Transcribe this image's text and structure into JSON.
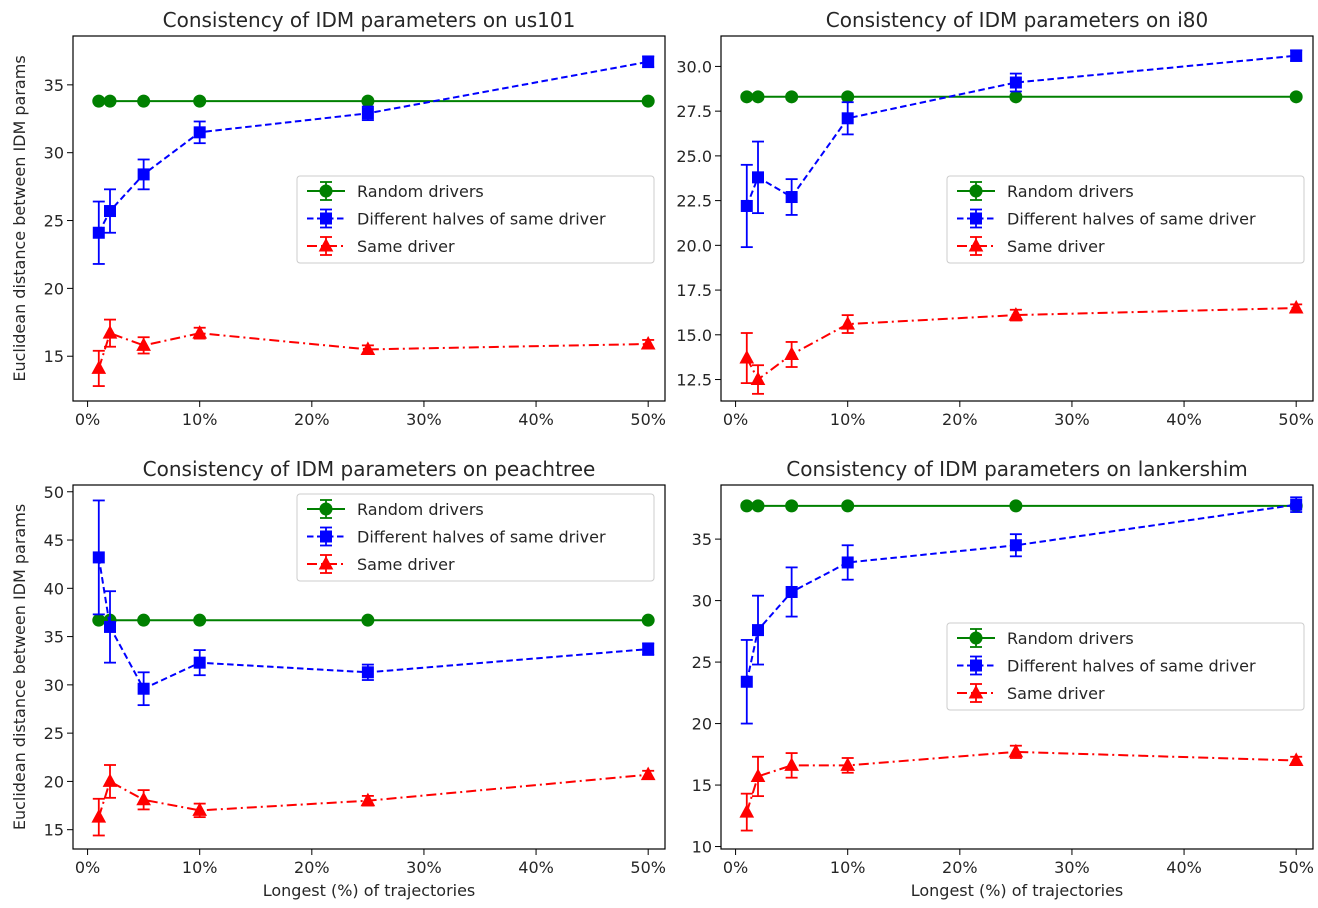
{
  "figure": {
    "ylabel_left": "Euclidean distance between IDM params",
    "xlabel_bottom": "Longest (%) of trajectories"
  },
  "colors": {
    "random": "#008000",
    "halves": "#0000ff",
    "same": "#ff0000"
  },
  "chart_data": [
    {
      "type": "line",
      "title": "Consistency of IDM parameters on us101",
      "xlabel": "",
      "ylabel": "Euclidean distance between IDM params",
      "x_ticks": [
        0,
        10,
        20,
        30,
        40,
        50
      ],
      "x_tick_labels": [
        "0%",
        "10%",
        "20%",
        "30%",
        "40%",
        "50%"
      ],
      "xlim": [
        -1.3,
        51.5
      ],
      "y_ticks": [
        15,
        20,
        25,
        30,
        35
      ],
      "y_tick_labels": [
        "15",
        "20",
        "25",
        "30",
        "35"
      ],
      "ylim": [
        11.7,
        38.6
      ],
      "legend_position": "center-right",
      "x": [
        1,
        2,
        5,
        10,
        25,
        50
      ],
      "series": [
        {
          "name": "Random drivers",
          "style": "solid",
          "marker": "circle",
          "values": [
            33.8,
            33.8,
            33.8,
            33.8,
            33.8,
            33.8
          ],
          "errors": [
            0,
            0,
            0,
            0,
            0,
            0
          ]
        },
        {
          "name": "Different halves of same driver",
          "style": "dashed",
          "marker": "square",
          "values": [
            24.1,
            25.7,
            28.4,
            31.5,
            32.9,
            36.7
          ],
          "errors": [
            2.3,
            1.6,
            1.1,
            0.8,
            0.5,
            0.4
          ]
        },
        {
          "name": "Same driver",
          "style": "dashdot",
          "marker": "triangle",
          "values": [
            14.1,
            16.7,
            15.8,
            16.7,
            15.5,
            15.9
          ],
          "errors": [
            1.3,
            1.0,
            0.6,
            0.4,
            0.3,
            0.3
          ]
        }
      ]
    },
    {
      "type": "line",
      "title": "Consistency of IDM parameters on i80",
      "xlabel": "",
      "ylabel": "",
      "x_ticks": [
        0,
        10,
        20,
        30,
        40,
        50
      ],
      "x_tick_labels": [
        "0%",
        "10%",
        "20%",
        "30%",
        "40%",
        "50%"
      ],
      "xlim": [
        -1.3,
        51.5
      ],
      "y_ticks": [
        12.5,
        15.0,
        17.5,
        20.0,
        22.5,
        25.0,
        27.5,
        30.0
      ],
      "y_tick_labels": [
        "12.5",
        "15.0",
        "17.5",
        "20.0",
        "22.5",
        "25.0",
        "27.5",
        "30.0"
      ],
      "ylim": [
        11.3,
        31.7
      ],
      "legend_position": "center-right",
      "x": [
        1,
        2,
        5,
        10,
        25,
        50
      ],
      "series": [
        {
          "name": "Random drivers",
          "style": "solid",
          "marker": "circle",
          "values": [
            28.3,
            28.3,
            28.3,
            28.3,
            28.3,
            28.3
          ],
          "errors": [
            0,
            0,
            0,
            0,
            0,
            0
          ]
        },
        {
          "name": "Different halves of same driver",
          "style": "dashed",
          "marker": "square",
          "values": [
            22.2,
            23.8,
            22.7,
            27.1,
            29.1,
            30.6
          ],
          "errors": [
            2.3,
            2.0,
            1.0,
            0.9,
            0.5,
            0.3
          ]
        },
        {
          "name": "Same driver",
          "style": "dashdot",
          "marker": "triangle",
          "values": [
            13.7,
            12.5,
            13.9,
            15.6,
            16.1,
            16.5
          ],
          "errors": [
            1.4,
            0.8,
            0.7,
            0.5,
            0.3,
            0.2
          ]
        }
      ]
    },
    {
      "type": "line",
      "title": "Consistency of IDM parameters on peachtree",
      "xlabel": "Longest (%) of trajectories",
      "ylabel": "Euclidean distance between IDM params",
      "x_ticks": [
        0,
        10,
        20,
        30,
        40,
        50
      ],
      "x_tick_labels": [
        "0%",
        "10%",
        "20%",
        "30%",
        "40%",
        "50%"
      ],
      "xlim": [
        -1.3,
        51.5
      ],
      "y_ticks": [
        15,
        20,
        25,
        30,
        35,
        40,
        45,
        50
      ],
      "y_tick_labels": [
        "15",
        "20",
        "25",
        "30",
        "35",
        "40",
        "45",
        "50"
      ],
      "ylim": [
        13.0,
        50.7
      ],
      "legend_position": "upper-right",
      "x": [
        1,
        2,
        5,
        10,
        25,
        50
      ],
      "series": [
        {
          "name": "Random drivers",
          "style": "solid",
          "marker": "circle",
          "values": [
            36.7,
            36.7,
            36.7,
            36.7,
            36.7,
            36.7
          ],
          "errors": [
            0,
            0,
            0,
            0,
            0,
            0
          ]
        },
        {
          "name": "Different halves of same driver",
          "style": "dashed",
          "marker": "square",
          "values": [
            43.2,
            36.0,
            29.6,
            32.3,
            31.3,
            33.7
          ],
          "errors": [
            5.9,
            3.7,
            1.7,
            1.3,
            0.8,
            0.6
          ]
        },
        {
          "name": "Same driver",
          "style": "dashdot",
          "marker": "triangle",
          "values": [
            16.3,
            20.0,
            18.1,
            17.0,
            18.0,
            20.7
          ],
          "errors": [
            1.9,
            1.7,
            1.0,
            0.7,
            0.5,
            0.4
          ]
        }
      ]
    },
    {
      "type": "line",
      "title": "Consistency of IDM parameters on lankershim",
      "xlabel": "Longest (%) of trajectories",
      "ylabel": "",
      "x_ticks": [
        0,
        10,
        20,
        30,
        40,
        50
      ],
      "x_tick_labels": [
        "0%",
        "10%",
        "20%",
        "30%",
        "40%",
        "50%"
      ],
      "xlim": [
        -1.3,
        51.5
      ],
      "y_ticks": [
        10,
        15,
        20,
        25,
        30,
        35
      ],
      "y_tick_labels": [
        "10",
        "15",
        "20",
        "25",
        "30",
        "35"
      ],
      "ylim": [
        9.8,
        39.4
      ],
      "legend_position": "center-right",
      "x": [
        1,
        2,
        5,
        10,
        25,
        50
      ],
      "series": [
        {
          "name": "Random drivers",
          "style": "solid",
          "marker": "circle",
          "values": [
            37.7,
            37.7,
            37.7,
            37.7,
            37.7,
            37.7
          ],
          "errors": [
            0,
            0,
            0,
            0,
            0,
            0
          ]
        },
        {
          "name": "Different halves of same driver",
          "style": "dashed",
          "marker": "square",
          "values": [
            23.4,
            27.6,
            30.7,
            33.1,
            34.5,
            37.8
          ],
          "errors": [
            3.4,
            2.8,
            2.0,
            1.4,
            0.9,
            0.6
          ]
        },
        {
          "name": "Same driver",
          "style": "dashdot",
          "marker": "triangle",
          "values": [
            12.8,
            15.7,
            16.6,
            16.6,
            17.7,
            17.0
          ],
          "errors": [
            1.5,
            1.6,
            1.0,
            0.6,
            0.5,
            0.3
          ]
        }
      ]
    }
  ]
}
